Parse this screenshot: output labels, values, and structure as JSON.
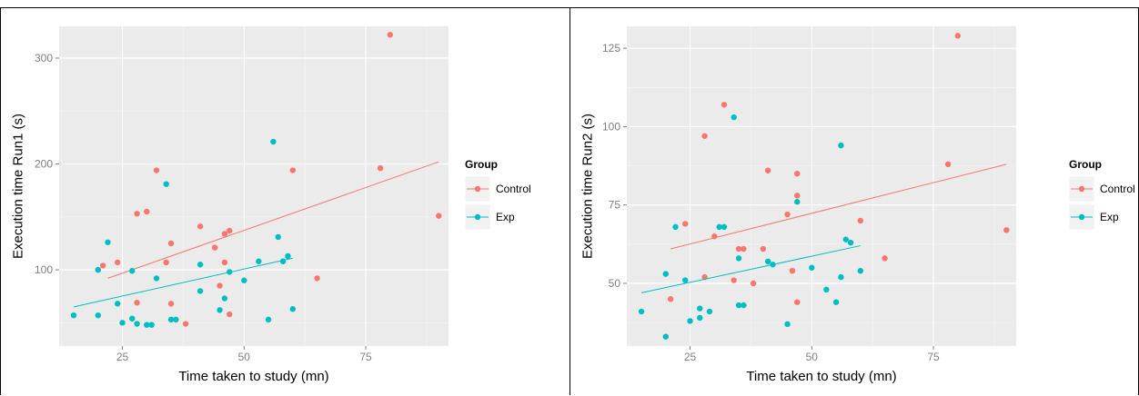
{
  "chart_data": [
    {
      "type": "scatter",
      "xlabel": "Time taken to study (mn)",
      "ylabel": "Execution time Run1 (s)",
      "xlim": [
        12,
        92
      ],
      "ylim": [
        28,
        330
      ],
      "xticks": [
        25,
        50,
        75
      ],
      "yticks": [
        100,
        200,
        300
      ],
      "grid": true,
      "legend": {
        "title": "Group",
        "position": "right",
        "entries": [
          "Control",
          "Exp"
        ]
      },
      "colors": {
        "Control": "#f8766d",
        "Exp": "#00bfc4",
        "panel": "#ebebeb",
        "grid": "#ffffff"
      },
      "series": [
        {
          "name": "Control",
          "points": [
            [
              20,
              100
            ],
            [
              21,
              104
            ],
            [
              24,
              107
            ],
            [
              28,
              69
            ],
            [
              28,
              153
            ],
            [
              30,
              155
            ],
            [
              32,
              194
            ],
            [
              34,
              107
            ],
            [
              35,
              125
            ],
            [
              35,
              68
            ],
            [
              38,
              49
            ],
            [
              41,
              141
            ],
            [
              44,
              121
            ],
            [
              45,
              85
            ],
            [
              46,
              134
            ],
            [
              46,
              107
            ],
            [
              47,
              58
            ],
            [
              47,
              137
            ],
            [
              60,
              194
            ],
            [
              65,
              92
            ],
            [
              78,
              196
            ],
            [
              80,
              322
            ],
            [
              90,
              151
            ]
          ],
          "trend": [
            [
              22,
              92
            ],
            [
              90,
              202
            ]
          ]
        },
        {
          "name": "Exp",
          "points": [
            [
              15,
              57
            ],
            [
              20,
              57
            ],
            [
              20,
              100
            ],
            [
              22,
              126
            ],
            [
              24,
              68
            ],
            [
              25,
              50
            ],
            [
              27,
              54
            ],
            [
              27,
              99
            ],
            [
              28,
              49
            ],
            [
              30,
              48
            ],
            [
              31,
              48
            ],
            [
              32,
              92
            ],
            [
              34,
              181
            ],
            [
              35,
              53
            ],
            [
              36,
              53
            ],
            [
              41,
              105
            ],
            [
              41,
              80
            ],
            [
              45,
              62
            ],
            [
              46,
              73
            ],
            [
              47,
              98
            ],
            [
              50,
              90
            ],
            [
              53,
              108
            ],
            [
              55,
              53
            ],
            [
              56,
              221
            ],
            [
              57,
              131
            ],
            [
              58,
              108
            ],
            [
              59,
              113
            ],
            [
              60,
              63
            ]
          ],
          "trend": [
            [
              15,
              65
            ],
            [
              60,
              111
            ]
          ]
        }
      ]
    },
    {
      "type": "scatter",
      "xlabel": "Time taken to study (mn)",
      "ylabel": "Execution time Run2 (s)",
      "xlim": [
        12,
        92
      ],
      "ylim": [
        30,
        132
      ],
      "xticks": [
        25,
        50,
        75
      ],
      "yticks": [
        50,
        75,
        100,
        125
      ],
      "grid": true,
      "legend": {
        "title": "Group",
        "position": "right",
        "entries": [
          "Control",
          "Exp"
        ]
      },
      "colors": {
        "Control": "#f8766d",
        "Exp": "#00bfc4",
        "panel": "#ebebeb",
        "grid": "#ffffff"
      },
      "series": [
        {
          "name": "Control",
          "points": [
            [
              21,
              45
            ],
            [
              24,
              69
            ],
            [
              28,
              52
            ],
            [
              28,
              97
            ],
            [
              30,
              65
            ],
            [
              32,
              107
            ],
            [
              34,
              51
            ],
            [
              35,
              61
            ],
            [
              36,
              61
            ],
            [
              38,
              50
            ],
            [
              40,
              61
            ],
            [
              41,
              86
            ],
            [
              45,
              72
            ],
            [
              46,
              54
            ],
            [
              47,
              78
            ],
            [
              47,
              85
            ],
            [
              47,
              44
            ],
            [
              60,
              70
            ],
            [
              65,
              58
            ],
            [
              78,
              88
            ],
            [
              80,
              129
            ],
            [
              90,
              67
            ]
          ],
          "trend": [
            [
              21,
              61
            ],
            [
              90,
              88
            ]
          ]
        },
        {
          "name": "Exp",
          "points": [
            [
              15,
              41
            ],
            [
              20,
              53
            ],
            [
              20,
              33
            ],
            [
              22,
              68
            ],
            [
              24,
              51
            ],
            [
              25,
              38
            ],
            [
              27,
              39
            ],
            [
              27,
              42
            ],
            [
              29,
              41
            ],
            [
              31,
              68
            ],
            [
              32,
              68
            ],
            [
              34,
              103
            ],
            [
              35,
              43
            ],
            [
              35,
              58
            ],
            [
              36,
              43
            ],
            [
              41,
              57
            ],
            [
              42,
              56
            ],
            [
              45,
              37
            ],
            [
              47,
              76
            ],
            [
              50,
              55
            ],
            [
              53,
              48
            ],
            [
              55,
              44
            ],
            [
              56,
              94
            ],
            [
              57,
              64
            ],
            [
              58,
              63
            ],
            [
              60,
              54
            ],
            [
              56,
              52
            ]
          ],
          "trend": [
            [
              15,
              47
            ],
            [
              60,
              62
            ]
          ]
        }
      ]
    }
  ]
}
